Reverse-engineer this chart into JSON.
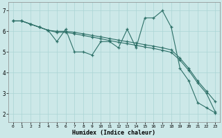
{
  "xlabel": "Humidex (Indice chaleur)",
  "bg_color": "#cce8e8",
  "line_color": "#2d7068",
  "grid_color": "#aad4d4",
  "xlim": [
    -0.5,
    23.5
  ],
  "ylim": [
    1.6,
    7.4
  ],
  "yticks": [
    2,
    3,
    4,
    5,
    6,
    7
  ],
  "xticks": [
    0,
    1,
    2,
    3,
    4,
    5,
    6,
    7,
    8,
    9,
    10,
    11,
    12,
    13,
    14,
    15,
    16,
    17,
    18,
    19,
    20,
    21,
    22,
    23
  ],
  "line1_x": [
    0,
    1,
    2,
    3,
    4,
    5,
    6,
    7,
    8,
    9,
    10,
    11,
    12,
    13,
    14,
    15,
    16,
    17,
    18,
    19,
    20,
    21,
    22,
    23
  ],
  "line1_y": [
    6.5,
    6.5,
    6.35,
    6.2,
    6.05,
    5.5,
    6.1,
    5.0,
    5.0,
    4.85,
    5.5,
    5.5,
    5.2,
    6.1,
    5.2,
    6.65,
    6.65,
    7.0,
    6.2,
    4.2,
    3.6,
    2.55,
    2.3,
    2.05
  ],
  "line2_x": [
    0,
    1,
    2,
    3,
    4,
    5,
    6,
    7,
    8,
    9,
    10,
    11,
    12,
    13,
    14,
    15,
    16,
    17,
    18,
    19,
    20,
    21,
    22,
    23
  ],
  "line2_y": [
    6.5,
    6.5,
    6.35,
    6.2,
    6.05,
    6.0,
    6.0,
    5.95,
    5.88,
    5.8,
    5.73,
    5.65,
    5.57,
    5.5,
    5.43,
    5.35,
    5.28,
    5.2,
    5.1,
    4.7,
    4.2,
    3.6,
    3.1,
    2.6
  ],
  "line3_x": [
    0,
    1,
    2,
    3,
    4,
    5,
    6,
    7,
    8,
    9,
    10,
    11,
    12,
    13,
    14,
    15,
    16,
    17,
    18,
    19,
    20,
    21,
    22,
    23
  ],
  "line3_y": [
    6.5,
    6.5,
    6.35,
    6.2,
    6.05,
    5.95,
    5.95,
    5.88,
    5.8,
    5.72,
    5.64,
    5.55,
    5.47,
    5.4,
    5.32,
    5.24,
    5.17,
    5.08,
    4.98,
    4.6,
    4.1,
    3.5,
    3.0,
    2.1
  ]
}
